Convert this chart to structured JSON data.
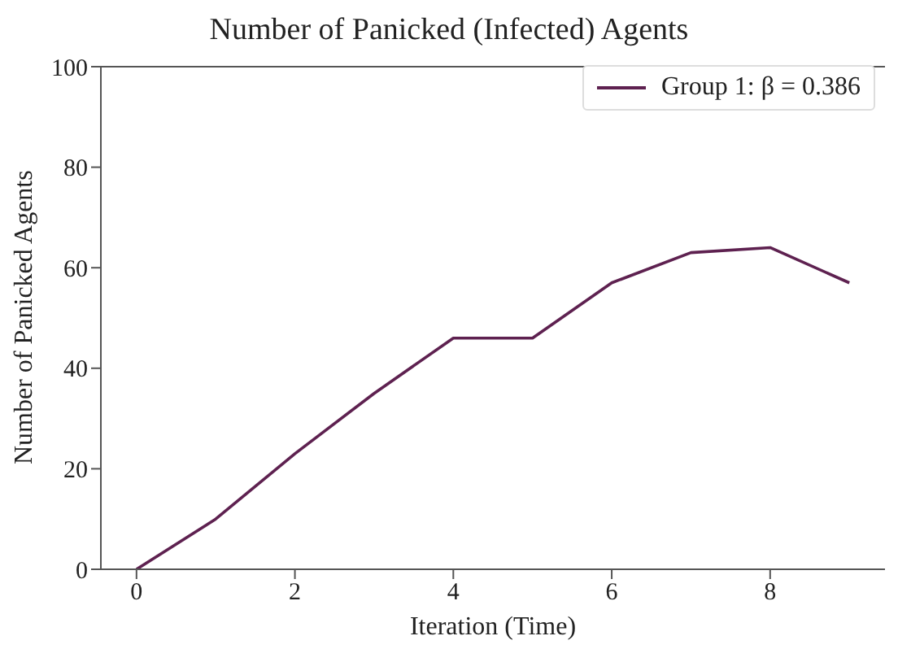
{
  "chart_data": {
    "type": "line",
    "title": "Number of Panicked (Infected) Agents",
    "xlabel": "Iteration (Time)",
    "ylabel": "Number of Panicked Agents",
    "x": [
      0,
      1,
      2,
      3,
      4,
      5,
      6,
      7,
      8,
      9
    ],
    "series": [
      {
        "name": "Group 1: β = 0.386",
        "color": "#5e2150",
        "values": [
          0,
          10,
          23,
          35,
          46,
          46,
          57,
          63,
          64,
          57
        ]
      }
    ],
    "xlim": [
      -0.45,
      9.45
    ],
    "xticks": [
      0,
      2,
      4,
      6,
      8
    ],
    "ylim": [
      0,
      100
    ],
    "yticks": [
      0,
      20,
      40,
      60,
      80,
      100
    ],
    "grid": false,
    "legend": "top right",
    "marker": "none",
    "line_style": "solid"
  }
}
